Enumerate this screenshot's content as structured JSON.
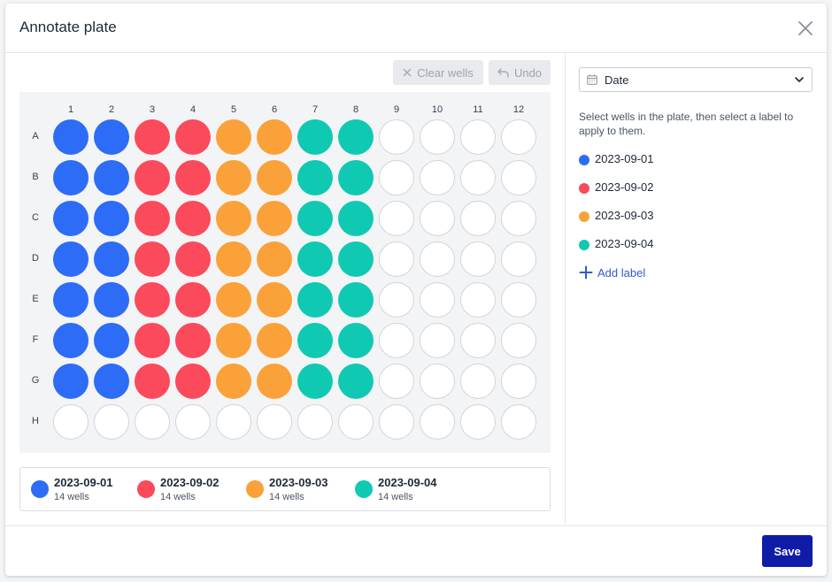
{
  "dialog": {
    "title": "Annotate plate",
    "close_icon": "close-icon"
  },
  "toolbar": {
    "clear_label": "Clear wells",
    "clear_icon": "x-icon",
    "undo_label": "Undo",
    "undo_icon": "undo-icon"
  },
  "plate": {
    "columns": [
      "1",
      "2",
      "3",
      "4",
      "5",
      "6",
      "7",
      "8",
      "9",
      "10",
      "11",
      "12"
    ],
    "rows": [
      "A",
      "B",
      "C",
      "D",
      "E",
      "F",
      "G",
      "H"
    ],
    "well_labels": [
      [
        "2023-09-01",
        "2023-09-01",
        "2023-09-02",
        "2023-09-02",
        "2023-09-03",
        "2023-09-03",
        "2023-09-04",
        "2023-09-04",
        null,
        null,
        null,
        null
      ],
      [
        "2023-09-01",
        "2023-09-01",
        "2023-09-02",
        "2023-09-02",
        "2023-09-03",
        "2023-09-03",
        "2023-09-04",
        "2023-09-04",
        null,
        null,
        null,
        null
      ],
      [
        "2023-09-01",
        "2023-09-01",
        "2023-09-02",
        "2023-09-02",
        "2023-09-03",
        "2023-09-03",
        "2023-09-04",
        "2023-09-04",
        null,
        null,
        null,
        null
      ],
      [
        "2023-09-01",
        "2023-09-01",
        "2023-09-02",
        "2023-09-02",
        "2023-09-03",
        "2023-09-03",
        "2023-09-04",
        "2023-09-04",
        null,
        null,
        null,
        null
      ],
      [
        "2023-09-01",
        "2023-09-01",
        "2023-09-02",
        "2023-09-02",
        "2023-09-03",
        "2023-09-03",
        "2023-09-04",
        "2023-09-04",
        null,
        null,
        null,
        null
      ],
      [
        "2023-09-01",
        "2023-09-01",
        "2023-09-02",
        "2023-09-02",
        "2023-09-03",
        "2023-09-03",
        "2023-09-04",
        "2023-09-04",
        null,
        null,
        null,
        null
      ],
      [
        "2023-09-01",
        "2023-09-01",
        "2023-09-02",
        "2023-09-02",
        "2023-09-03",
        "2023-09-03",
        "2023-09-04",
        "2023-09-04",
        null,
        null,
        null,
        null
      ],
      [
        null,
        null,
        null,
        null,
        null,
        null,
        null,
        null,
        null,
        null,
        null,
        null
      ]
    ]
  },
  "labels": [
    {
      "name": "2023-09-01",
      "color": "#2d6cf6",
      "count": "14 wells"
    },
    {
      "name": "2023-09-02",
      "color": "#fa4a5c",
      "count": "14 wells"
    },
    {
      "name": "2023-09-03",
      "color": "#fba13a",
      "count": "14 wells"
    },
    {
      "name": "2023-09-04",
      "color": "#10c9b3",
      "count": "14 wells"
    }
  ],
  "sidebar": {
    "select_value": "Date",
    "select_icon": "calendar-icon",
    "instructions": "Select wells in the plate, then select a label to apply to them.",
    "add_label": "Add label",
    "add_icon": "plus-icon"
  },
  "footer": {
    "save_label": "Save"
  }
}
